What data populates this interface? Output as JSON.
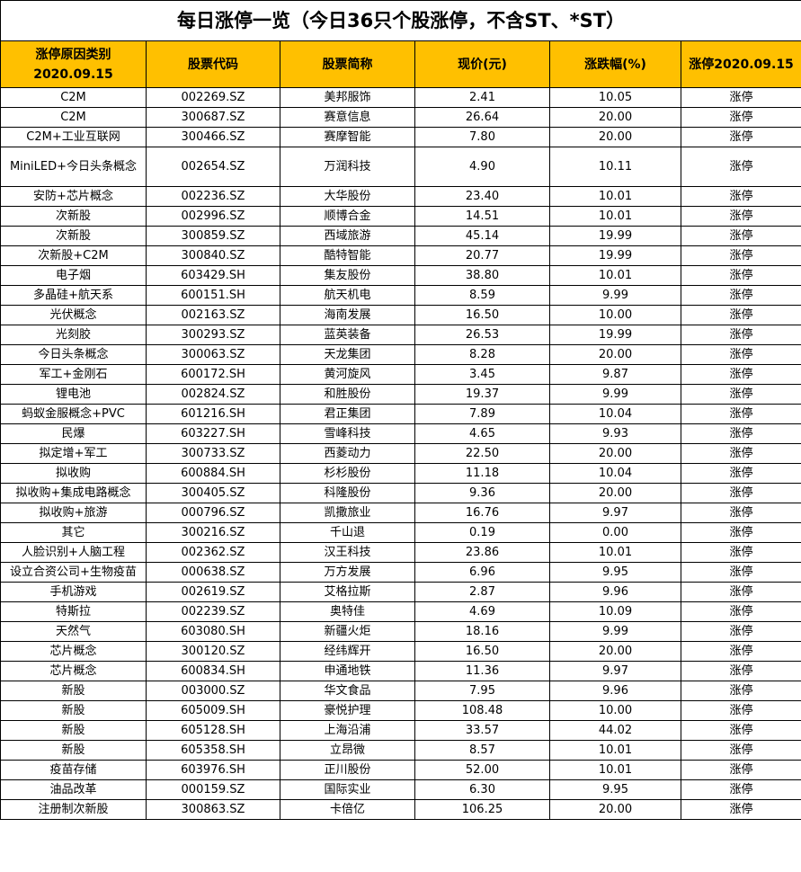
{
  "title": "每日涨停一览（今日36只个股涨停，不含ST、*ST）",
  "colors": {
    "header_bg": "#FFC000",
    "border": "#000000"
  },
  "columns": [
    "涨停原因类别\n2020.09.15",
    "股票代码",
    "股票简称",
    "现价(元)",
    "涨跌幅(%)",
    "涨停2020.09.15"
  ],
  "rows": [
    [
      "C2M",
      "002269.SZ",
      "美邦服饰",
      "2.41",
      "10.05",
      "涨停"
    ],
    [
      "C2M",
      "300687.SZ",
      "赛意信息",
      "26.64",
      "20.00",
      "涨停"
    ],
    [
      "C2M+工业互联网",
      "300466.SZ",
      "赛摩智能",
      "7.80",
      "20.00",
      "涨停"
    ],
    [
      "MiniLED+今日头条概念",
      "002654.SZ",
      "万润科技",
      "4.90",
      "10.11",
      "涨停"
    ],
    [
      "安防+芯片概念",
      "002236.SZ",
      "大华股份",
      "23.40",
      "10.01",
      "涨停"
    ],
    [
      "次新股",
      "002996.SZ",
      "顺博合金",
      "14.51",
      "10.01",
      "涨停"
    ],
    [
      "次新股",
      "300859.SZ",
      "西域旅游",
      "45.14",
      "19.99",
      "涨停"
    ],
    [
      "次新股+C2M",
      "300840.SZ",
      "酷特智能",
      "20.77",
      "19.99",
      "涨停"
    ],
    [
      "电子烟",
      "603429.SH",
      "集友股份",
      "38.80",
      "10.01",
      "涨停"
    ],
    [
      "多晶硅+航天系",
      "600151.SH",
      "航天机电",
      "8.59",
      "9.99",
      "涨停"
    ],
    [
      "光伏概念",
      "002163.SZ",
      "海南发展",
      "16.50",
      "10.00",
      "涨停"
    ],
    [
      "光刻胶",
      "300293.SZ",
      "蓝英装备",
      "26.53",
      "19.99",
      "涨停"
    ],
    [
      "今日头条概念",
      "300063.SZ",
      "天龙集团",
      "8.28",
      "20.00",
      "涨停"
    ],
    [
      "军工+金刚石",
      "600172.SH",
      "黄河旋风",
      "3.45",
      "9.87",
      "涨停"
    ],
    [
      "锂电池",
      "002824.SZ",
      "和胜股份",
      "19.37",
      "9.99",
      "涨停"
    ],
    [
      "蚂蚁金服概念+PVC",
      "601216.SH",
      "君正集团",
      "7.89",
      "10.04",
      "涨停"
    ],
    [
      "民爆",
      "603227.SH",
      "雪峰科技",
      "4.65",
      "9.93",
      "涨停"
    ],
    [
      "拟定增+军工",
      "300733.SZ",
      "西菱动力",
      "22.50",
      "20.00",
      "涨停"
    ],
    [
      "拟收购",
      "600884.SH",
      "杉杉股份",
      "11.18",
      "10.04",
      "涨停"
    ],
    [
      "拟收购+集成电路概念",
      "300405.SZ",
      "科隆股份",
      "9.36",
      "20.00",
      "涨停"
    ],
    [
      "拟收购+旅游",
      "000796.SZ",
      "凯撒旅业",
      "16.76",
      "9.97",
      "涨停"
    ],
    [
      "其它",
      "300216.SZ",
      "千山退",
      "0.19",
      "0.00",
      "涨停"
    ],
    [
      "人脸识别+人脑工程",
      "002362.SZ",
      "汉王科技",
      "23.86",
      "10.01",
      "涨停"
    ],
    [
      "设立合资公司+生物疫苗",
      "000638.SZ",
      "万方发展",
      "6.96",
      "9.95",
      "涨停"
    ],
    [
      "手机游戏",
      "002619.SZ",
      "艾格拉斯",
      "2.87",
      "9.96",
      "涨停"
    ],
    [
      "特斯拉",
      "002239.SZ",
      "奥特佳",
      "4.69",
      "10.09",
      "涨停"
    ],
    [
      "天然气",
      "603080.SH",
      "新疆火炬",
      "18.16",
      "9.99",
      "涨停"
    ],
    [
      "芯片概念",
      "300120.SZ",
      "经纬辉开",
      "16.50",
      "20.00",
      "涨停"
    ],
    [
      "芯片概念",
      "600834.SH",
      "申通地铁",
      "11.36",
      "9.97",
      "涨停"
    ],
    [
      "新股",
      "003000.SZ",
      "华文食品",
      "7.95",
      "9.96",
      "涨停"
    ],
    [
      "新股",
      "605009.SH",
      "豪悦护理",
      "108.48",
      "10.00",
      "涨停"
    ],
    [
      "新股",
      "605128.SH",
      "上海沿浦",
      "33.57",
      "44.02",
      "涨停"
    ],
    [
      "新股",
      "605358.SH",
      "立昂微",
      "8.57",
      "10.01",
      "涨停"
    ],
    [
      "疫苗存储",
      "603976.SH",
      "正川股份",
      "52.00",
      "10.01",
      "涨停"
    ],
    [
      "油品改革",
      "000159.SZ",
      "国际实业",
      "6.30",
      "9.95",
      "涨停"
    ],
    [
      "注册制次新股",
      "300863.SZ",
      "卡倍亿",
      "106.25",
      "20.00",
      "涨停"
    ]
  ]
}
